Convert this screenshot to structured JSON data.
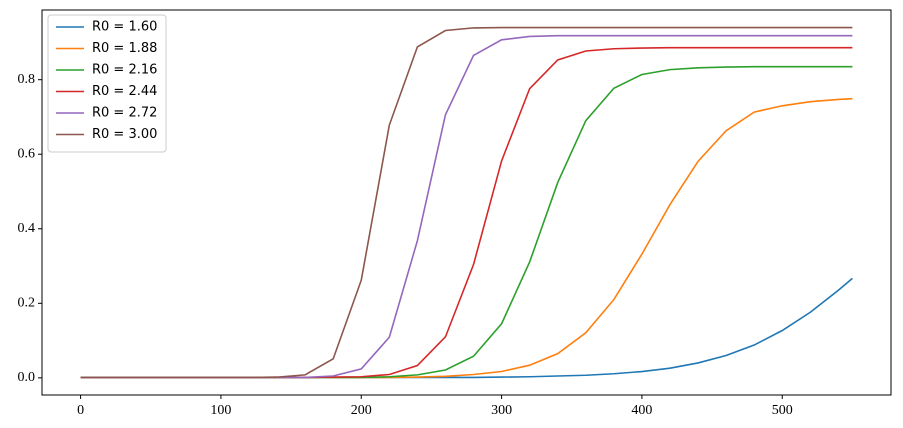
{
  "chart_data": {
    "type": "line",
    "x": [
      0,
      20,
      40,
      60,
      80,
      100,
      120,
      140,
      160,
      180,
      200,
      220,
      240,
      260,
      280,
      300,
      320,
      340,
      360,
      380,
      400,
      420,
      440,
      460,
      480,
      500,
      520,
      540,
      550
    ],
    "series": [
      {
        "name": "R0 = 1.60",
        "color": "#1f77b4",
        "values": [
          0.001,
          0.001,
          0.001,
          0.001,
          0.001,
          0.001,
          0.001,
          0.001,
          0.001,
          0.001,
          0.001,
          0.001,
          0.001,
          0.001,
          0.001,
          0.002,
          0.003,
          0.005,
          0.007,
          0.011,
          0.017,
          0.026,
          0.04,
          0.06,
          0.088,
          0.127,
          0.176,
          0.235,
          0.267
        ]
      },
      {
        "name": "R0 = 1.88",
        "color": "#ff7f0e",
        "values": [
          0.001,
          0.001,
          0.001,
          0.001,
          0.001,
          0.001,
          0.001,
          0.001,
          0.001,
          0.001,
          0.001,
          0.001,
          0.002,
          0.004,
          0.009,
          0.017,
          0.034,
          0.065,
          0.121,
          0.21,
          0.332,
          0.465,
          0.581,
          0.663,
          0.713,
          0.73,
          0.741,
          0.747,
          0.749
        ]
      },
      {
        "name": "R0 = 2.16",
        "color": "#2ca02c",
        "values": [
          0.001,
          0.001,
          0.001,
          0.001,
          0.001,
          0.001,
          0.001,
          0.001,
          0.001,
          0.001,
          0.001,
          0.003,
          0.008,
          0.021,
          0.058,
          0.145,
          0.311,
          0.524,
          0.69,
          0.777,
          0.814,
          0.827,
          0.832,
          0.834,
          0.835,
          0.835,
          0.835,
          0.835,
          0.835
        ]
      },
      {
        "name": "R0 = 2.44",
        "color": "#d62728",
        "values": [
          0.001,
          0.001,
          0.001,
          0.001,
          0.001,
          0.001,
          0.001,
          0.001,
          0.001,
          0.002,
          0.003,
          0.009,
          0.033,
          0.11,
          0.304,
          0.582,
          0.776,
          0.853,
          0.877,
          0.883,
          0.885,
          0.886,
          0.886,
          0.886,
          0.886,
          0.886,
          0.886,
          0.886,
          0.886
        ]
      },
      {
        "name": "R0 = 2.72",
        "color": "#9467bd",
        "values": [
          0.001,
          0.001,
          0.001,
          0.001,
          0.001,
          0.001,
          0.001,
          0.001,
          0.001,
          0.005,
          0.024,
          0.109,
          0.368,
          0.706,
          0.865,
          0.907,
          0.916,
          0.918,
          0.918,
          0.918,
          0.918,
          0.918,
          0.918,
          0.918,
          0.918,
          0.918,
          0.918,
          0.918,
          0.918
        ]
      },
      {
        "name": "R0 = 3.00",
        "color": "#8c564b",
        "values": [
          0.001,
          0.001,
          0.001,
          0.001,
          0.001,
          0.001,
          0.001,
          0.002,
          0.008,
          0.051,
          0.262,
          0.678,
          0.888,
          0.932,
          0.939,
          0.94,
          0.94,
          0.94,
          0.94,
          0.94,
          0.94,
          0.94,
          0.94,
          0.94,
          0.94,
          0.94,
          0.94,
          0.94,
          0.94
        ]
      }
    ],
    "xlim": [
      -27.5,
      577.5
    ],
    "ylim": [
      -0.046,
      0.987
    ],
    "xticks": [
      0,
      100,
      200,
      300,
      400,
      500
    ],
    "yticks": [
      {
        "value": 0,
        "label": "0.0"
      },
      0.2,
      0.4,
      0.6,
      0.8
    ],
    "legend": "upper left",
    "grid": false
  }
}
